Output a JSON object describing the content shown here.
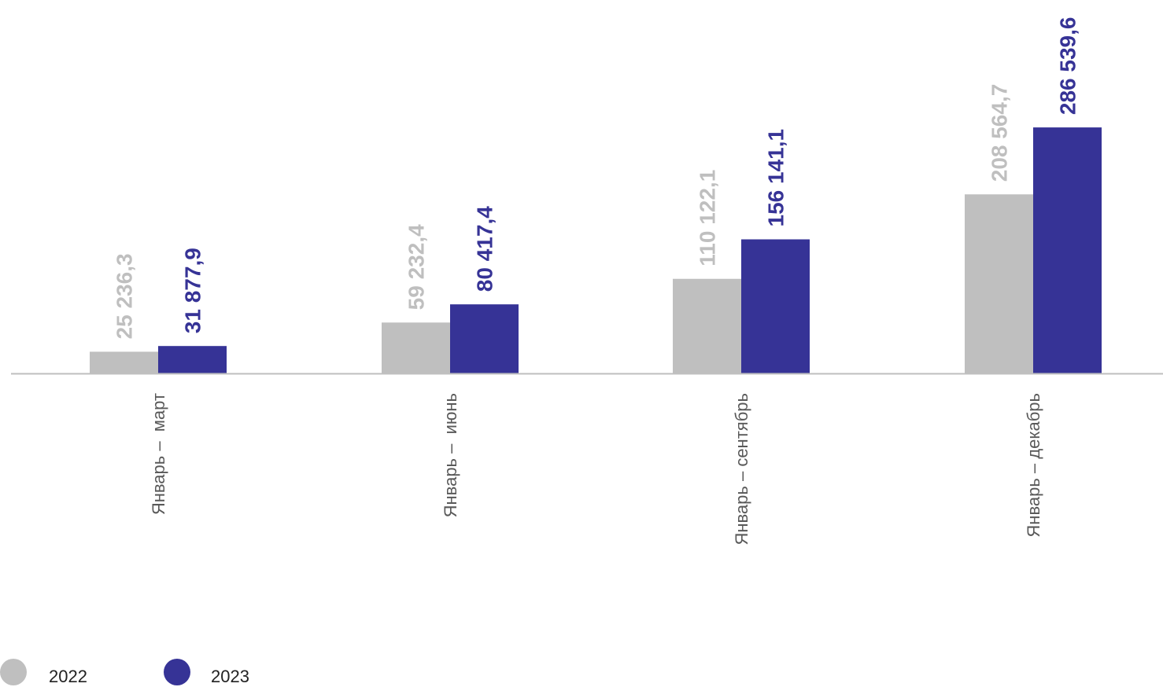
{
  "chart_data": {
    "type": "bar",
    "categories": [
      "Январь –  март",
      "Январь –  июнь",
      "Январь – сентябрь",
      "Январь – декабрь"
    ],
    "series": [
      {
        "name": "2022",
        "color": "#bfbfbf",
        "values": [
          25236.3,
          59232.4,
          110122.1,
          208564.7
        ],
        "labels": [
          "25 236,3",
          "59 232,4",
          "110 122,1",
          "208 564,7"
        ]
      },
      {
        "name": "2023",
        "color": "#363396",
        "values": [
          31877.9,
          80417.4,
          156141.1,
          286539.6
        ],
        "labels": [
          "31 877,9",
          "80 417,4",
          "156 141,1",
          "286 539,6"
        ]
      }
    ],
    "ylim": [
      0,
      435000
    ],
    "grid": false,
    "legend": "bottom-left"
  }
}
